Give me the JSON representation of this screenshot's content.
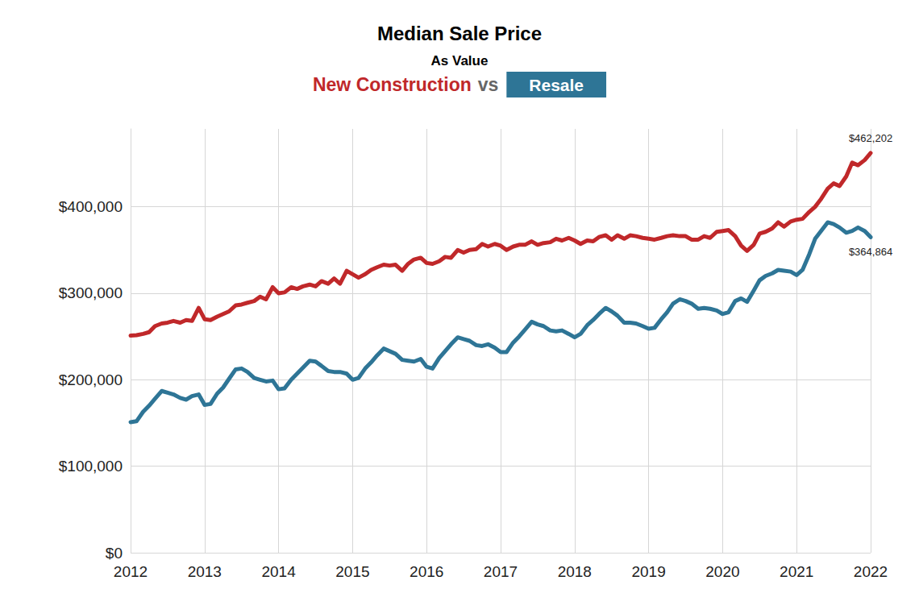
{
  "chart_data": {
    "type": "line",
    "title": "Median Sale Price",
    "subtitle": "As Value",
    "legend": "top",
    "legend_separator": "vs",
    "grid": true,
    "xlim": [
      2012,
      2022
    ],
    "xticks": [
      2012,
      2013,
      2014,
      2015,
      2016,
      2017,
      2018,
      2019,
      2020,
      2021,
      2022
    ],
    "ylim": [
      0,
      490000
    ],
    "yticks": [
      {
        "value": 0,
        "label": "$0"
      },
      {
        "value": 100000,
        "label": "$100,000"
      },
      {
        "value": 200000,
        "label": "$200,000"
      },
      {
        "value": 300000,
        "label": "$300,000"
      },
      {
        "value": 400000,
        "label": "$400,000"
      }
    ],
    "x": [
      2012,
      2012.08,
      2012.17,
      2012.25,
      2012.33,
      2012.42,
      2012.5,
      2012.58,
      2012.67,
      2012.75,
      2012.83,
      2012.92,
      2013,
      2013.08,
      2013.17,
      2013.25,
      2013.33,
      2013.42,
      2013.5,
      2013.58,
      2013.67,
      2013.75,
      2013.83,
      2013.92,
      2014,
      2014.08,
      2014.17,
      2014.25,
      2014.33,
      2014.42,
      2014.5,
      2014.58,
      2014.67,
      2014.75,
      2014.83,
      2014.92,
      2015,
      2015.08,
      2015.17,
      2015.25,
      2015.33,
      2015.42,
      2015.5,
      2015.58,
      2015.67,
      2015.75,
      2015.83,
      2015.92,
      2016,
      2016.08,
      2016.17,
      2016.25,
      2016.33,
      2016.42,
      2016.5,
      2016.58,
      2016.67,
      2016.75,
      2016.83,
      2016.92,
      2017,
      2017.08,
      2017.17,
      2017.25,
      2017.33,
      2017.42,
      2017.5,
      2017.58,
      2017.67,
      2017.75,
      2017.83,
      2017.92,
      2018,
      2018.08,
      2018.17,
      2018.25,
      2018.33,
      2018.42,
      2018.5,
      2018.58,
      2018.67,
      2018.75,
      2018.83,
      2018.92,
      2019,
      2019.08,
      2019.17,
      2019.25,
      2019.33,
      2019.42,
      2019.5,
      2019.58,
      2019.67,
      2019.75,
      2019.83,
      2019.92,
      2020,
      2020.08,
      2020.17,
      2020.25,
      2020.33,
      2020.42,
      2020.5,
      2020.58,
      2020.67,
      2020.75,
      2020.83,
      2020.92,
      2021,
      2021.08,
      2021.17,
      2021.25,
      2021.33,
      2021.42,
      2021.5,
      2021.58,
      2021.67,
      2021.75,
      2021.83,
      2021.92,
      2022
    ],
    "series": [
      {
        "name": "New Construction",
        "color": "#c0282a",
        "line_style": "solid",
        "marker": "none",
        "values": [
          251000,
          251500,
          253000,
          255000,
          262000,
          265000,
          266000,
          268000,
          266000,
          269000,
          268000,
          283000,
          270000,
          269000,
          273000,
          276000,
          279000,
          286000,
          287000,
          289000,
          291000,
          296000,
          293000,
          307000,
          300000,
          301000,
          307000,
          305000,
          308000,
          310000,
          308000,
          314000,
          311000,
          317000,
          311000,
          326000,
          322000,
          318000,
          322000,
          327000,
          330000,
          333000,
          332000,
          333000,
          326000,
          334000,
          339000,
          341000,
          335000,
          334000,
          337000,
          342000,
          341000,
          350000,
          347000,
          350000,
          351000,
          357000,
          354000,
          357000,
          355000,
          350000,
          354000,
          356000,
          356000,
          360000,
          356000,
          358000,
          359000,
          363000,
          361000,
          364000,
          361000,
          357000,
          361000,
          360000,
          365000,
          367000,
          362000,
          367000,
          363000,
          367000,
          366000,
          364000,
          363000,
          362000,
          364000,
          366000,
          367000,
          366000,
          366000,
          362000,
          362000,
          366000,
          364000,
          371000,
          372000,
          373000,
          366000,
          355000,
          349000,
          356000,
          369000,
          371000,
          375000,
          382000,
          377000,
          383000,
          385000,
          386000,
          394000,
          400000,
          409000,
          421000,
          427000,
          424000,
          435000,
          451000,
          448000,
          454000,
          462202
        ]
      },
      {
        "name": "Resale",
        "color": "#2e7596",
        "line_style": "solid",
        "marker": "none",
        "values": [
          151000,
          152000,
          163000,
          170000,
          178000,
          187000,
          185000,
          183000,
          179000,
          177000,
          181000,
          183000,
          171000,
          172000,
          184000,
          191000,
          201000,
          212000,
          213000,
          209000,
          202000,
          200000,
          198000,
          199000,
          189000,
          190000,
          200000,
          207000,
          214000,
          222000,
          221000,
          216000,
          210000,
          209000,
          209000,
          207000,
          200000,
          202000,
          213000,
          220000,
          228000,
          236000,
          233000,
          230000,
          223000,
          222000,
          221000,
          224000,
          215000,
          213000,
          225000,
          233000,
          241000,
          249000,
          247000,
          245000,
          240000,
          239000,
          241000,
          237000,
          232000,
          232000,
          243000,
          250000,
          258000,
          267000,
          264000,
          262000,
          257000,
          256000,
          257000,
          253000,
          249000,
          253000,
          263000,
          269000,
          276000,
          283000,
          279000,
          274000,
          266000,
          266000,
          265000,
          262000,
          259000,
          260000,
          270000,
          278000,
          288000,
          293000,
          291000,
          288000,
          282000,
          283000,
          282000,
          280000,
          276000,
          278000,
          291000,
          294000,
          290000,
          303000,
          315000,
          320000,
          323000,
          327000,
          326000,
          325000,
          321000,
          327000,
          345000,
          363000,
          372000,
          382000,
          380000,
          376000,
          370000,
          372000,
          376000,
          372000,
          364864
        ]
      }
    ],
    "annotations": [
      {
        "series": "New Construction",
        "text": "$462,202"
      },
      {
        "series": "Resale",
        "text": "$364,864"
      }
    ]
  }
}
